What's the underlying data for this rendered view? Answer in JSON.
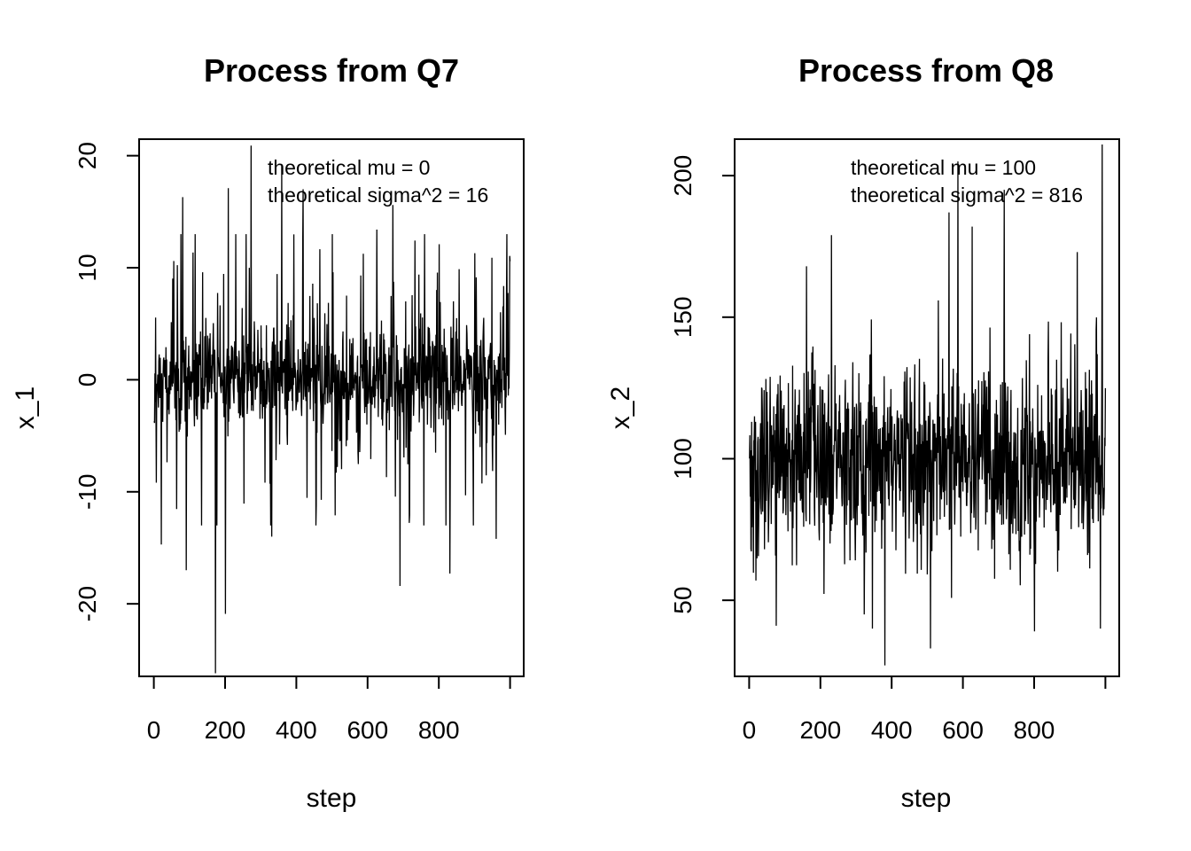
{
  "chart_data": [
    {
      "type": "line",
      "title": "Process from Q7",
      "xlabel": "step",
      "ylabel": "x_1",
      "xlim": [
        0,
        1000
      ],
      "ylim": [
        -26,
        21
      ],
      "xticks": [
        0,
        200,
        400,
        600,
        800
      ],
      "xtick_labels": [
        "0",
        "200",
        "400",
        "600",
        "800"
      ],
      "yticks": [
        -20,
        -10,
        0,
        10,
        20
      ],
      "ytick_labels": [
        "-20",
        "-10",
        "0",
        "10",
        "20"
      ],
      "grid": false,
      "legend_position": "top-right",
      "annotations": [
        "theoretical mu = 0",
        "theoretical sigma^2 = 16"
      ],
      "theoretical_mu": 0,
      "theoretical_sigma2": 16,
      "n_steps": 1000,
      "spikes": [
        {
          "x": 20,
          "y": -14.7
        },
        {
          "x": 55,
          "y": 10.6
        },
        {
          "x": 80,
          "y": 16.3
        },
        {
          "x": 90,
          "y": -17.0
        },
        {
          "x": 172,
          "y": -26.2
        },
        {
          "x": 200,
          "y": -20.9
        },
        {
          "x": 208,
          "y": 17.1
        },
        {
          "x": 272,
          "y": 20.9
        },
        {
          "x": 330,
          "y": -14.0
        },
        {
          "x": 358,
          "y": 19.1
        },
        {
          "x": 418,
          "y": 17.0
        },
        {
          "x": 500,
          "y": 13.0
        },
        {
          "x": 508,
          "y": -12.1
        },
        {
          "x": 625,
          "y": 13.4
        },
        {
          "x": 670,
          "y": 15.6
        },
        {
          "x": 690,
          "y": -18.4
        },
        {
          "x": 800,
          "y": 12.1
        },
        {
          "x": 830,
          "y": -17.3
        },
        {
          "x": 900,
          "y": 11.3
        },
        {
          "x": 960,
          "y": -14.2
        }
      ]
    },
    {
      "type": "line",
      "title": "Process from Q8",
      "xlabel": "step",
      "ylabel": "x_2",
      "xlim": [
        0,
        1000
      ],
      "ylim": [
        25,
        211
      ],
      "xticks": [
        0,
        200,
        400,
        600,
        800
      ],
      "xtick_labels": [
        "0",
        "200",
        "400",
        "600",
        "800"
      ],
      "yticks": [
        50,
        100,
        150,
        200
      ],
      "ytick_labels": [
        "50",
        "100",
        "150",
        "200"
      ],
      "grid": false,
      "legend_position": "top-right",
      "annotations": [
        "theoretical mu = 100",
        "theoretical sigma^2 = 816"
      ],
      "theoretical_mu": 100,
      "theoretical_sigma2": 816,
      "n_steps": 1000,
      "spikes": [
        {
          "x": 75,
          "y": 41.0
        },
        {
          "x": 160,
          "y": 168.0
        },
        {
          "x": 230,
          "y": 179.0
        },
        {
          "x": 345,
          "y": 40.0
        },
        {
          "x": 380,
          "y": 27.0
        },
        {
          "x": 508,
          "y": 33.0
        },
        {
          "x": 560,
          "y": 187.0
        },
        {
          "x": 585,
          "y": 205.0
        },
        {
          "x": 625,
          "y": 182.0
        },
        {
          "x": 715,
          "y": 195.0
        },
        {
          "x": 800,
          "y": 39.0
        },
        {
          "x": 920,
          "y": 173.0
        },
        {
          "x": 985,
          "y": 40.0
        },
        {
          "x": 990,
          "y": 211.0
        }
      ]
    }
  ]
}
